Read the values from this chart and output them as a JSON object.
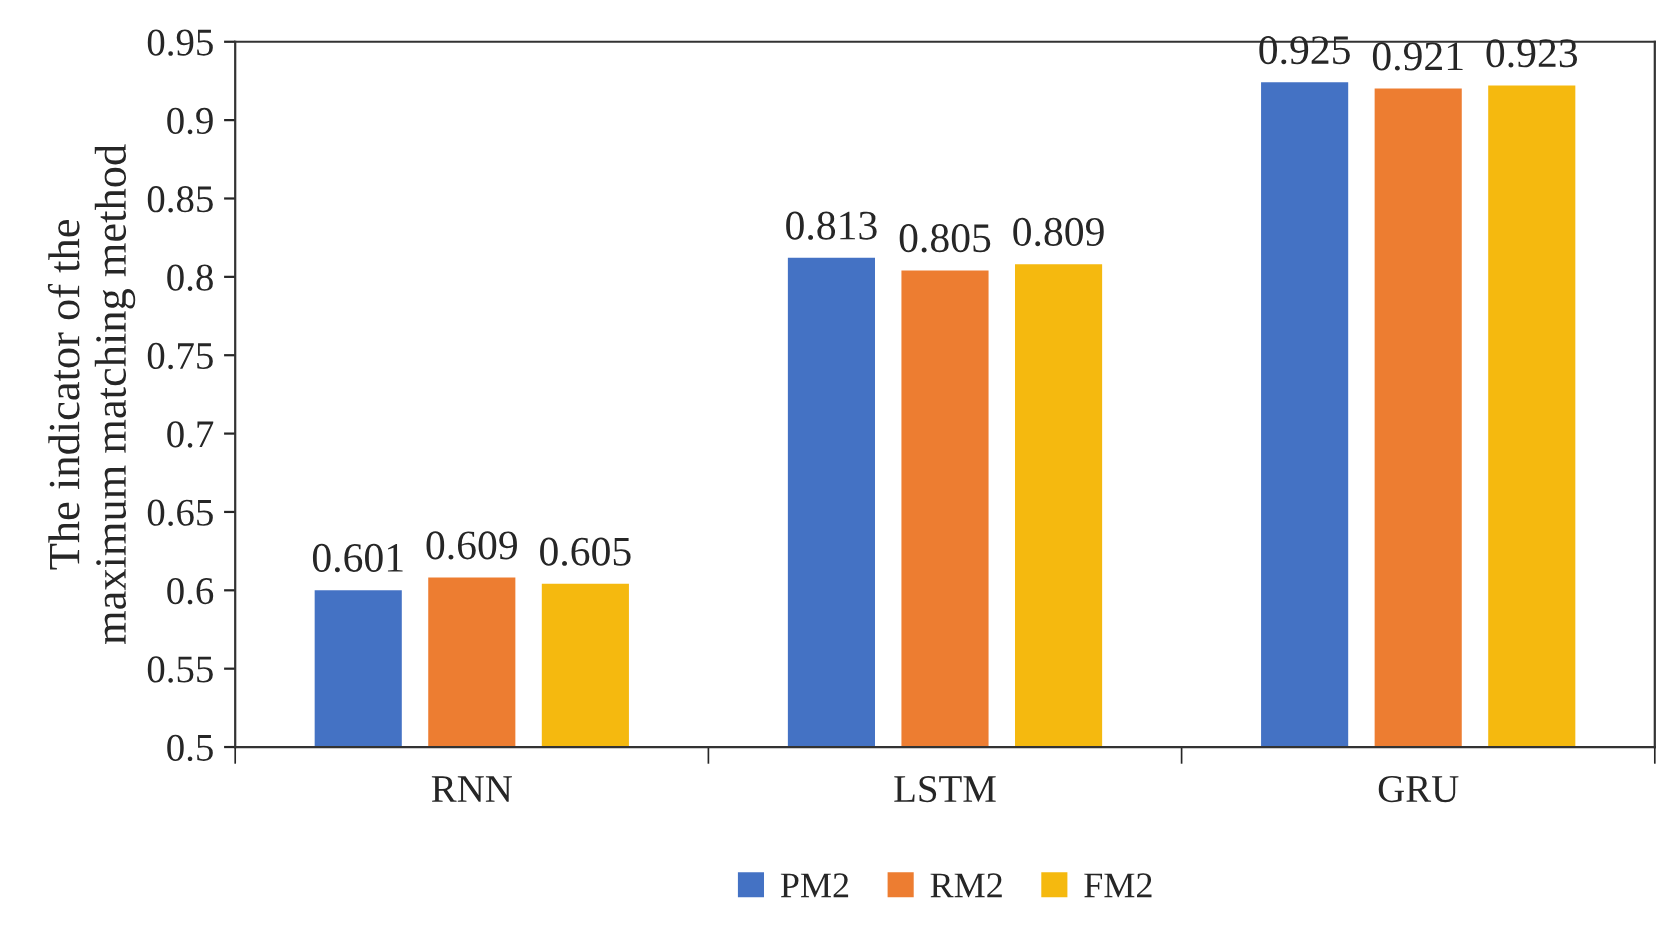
{
  "chart_data": {
    "type": "bar",
    "ylabel": "The indicator of the\nmaximum matching method",
    "categories": [
      "RNN",
      "LSTM",
      "GRU"
    ],
    "series": [
      {
        "name": "PM2",
        "color": "#4472c4",
        "values": [
          0.601,
          0.813,
          0.925
        ]
      },
      {
        "name": "RM2",
        "color": "#ed7d31",
        "values": [
          0.609,
          0.805,
          0.921
        ]
      },
      {
        "name": "FM2",
        "color": "#f5b90f",
        "values": [
          0.605,
          0.809,
          0.923
        ]
      }
    ],
    "ylim": [
      0.5,
      0.95
    ],
    "yticks": [
      0.5,
      0.55,
      0.6,
      0.65,
      0.7,
      0.75,
      0.8,
      0.85,
      0.9,
      0.95
    ],
    "data_labels": true,
    "grid": false,
    "legend": "bottom"
  }
}
